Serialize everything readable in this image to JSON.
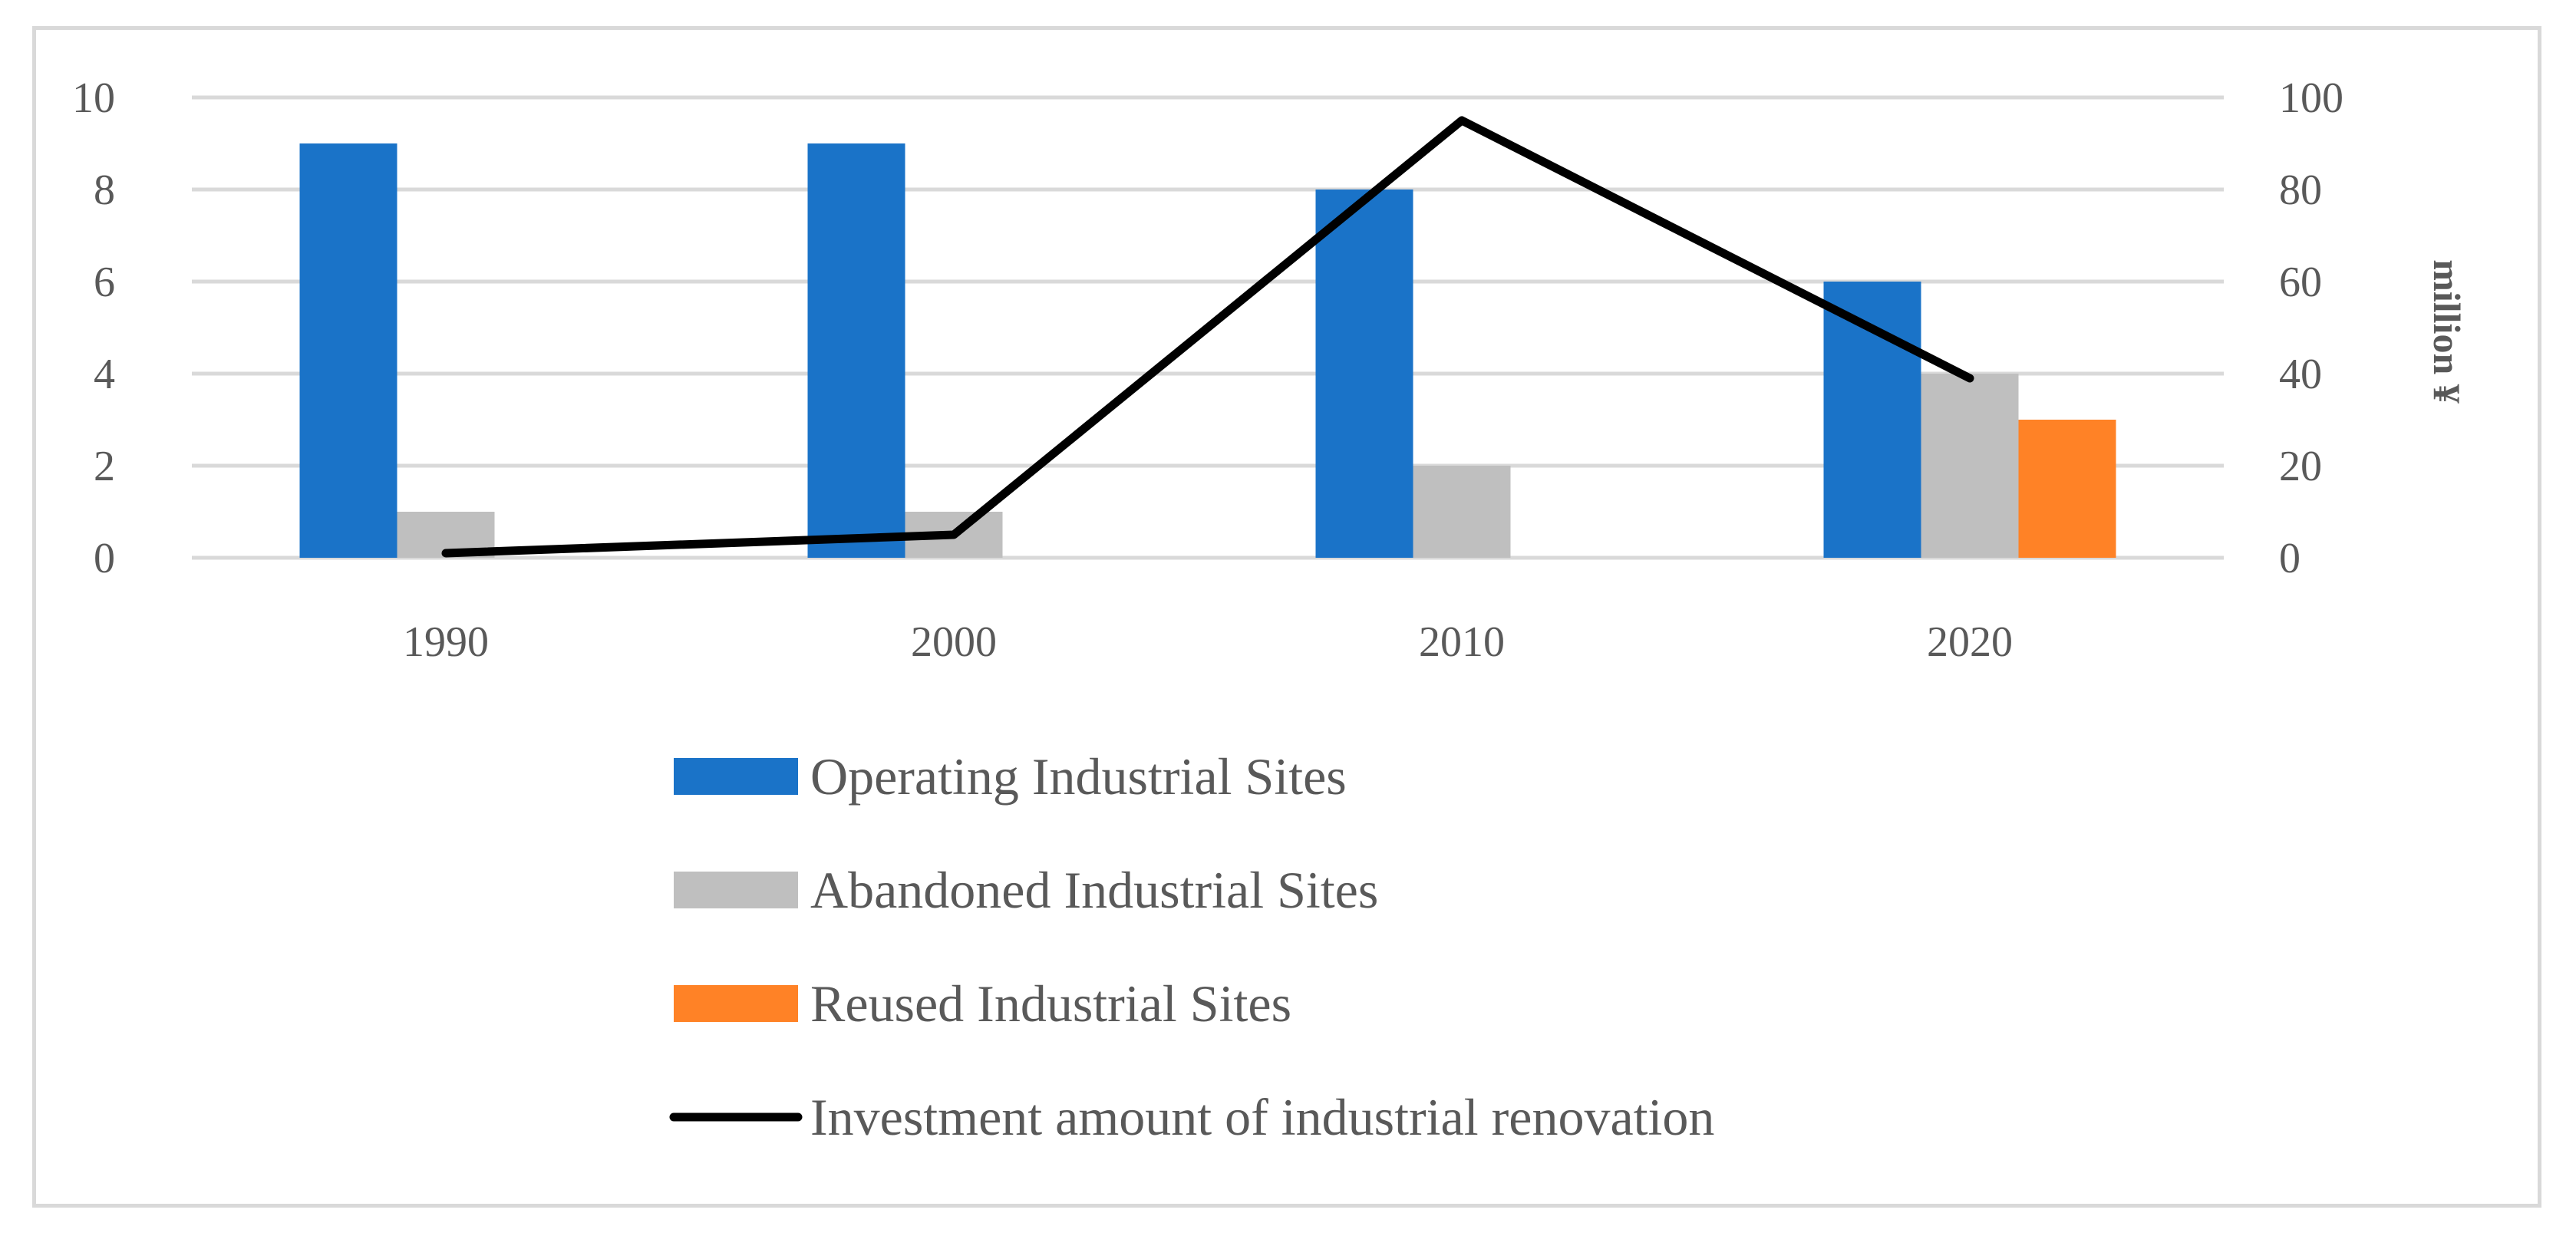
{
  "chart_data": {
    "type": "bar",
    "title": "",
    "xlabel": "",
    "ylabel": "",
    "y2label": "million ¥",
    "categories": [
      "1990",
      "2000",
      "2010",
      "2020"
    ],
    "ylim": [
      0,
      10
    ],
    "y2lim": [
      0,
      100
    ],
    "yticks": [
      "0",
      "2",
      "4",
      "6",
      "8",
      "10"
    ],
    "y2ticks": [
      "0",
      "20",
      "40",
      "60",
      "80",
      "100"
    ],
    "grid": true,
    "legend_position": "bottom",
    "series": [
      {
        "name": "Operating Industrial Sites",
        "kind": "bar",
        "axis": "left",
        "color": "#1a73c8",
        "values": [
          9,
          9,
          8,
          6
        ]
      },
      {
        "name": "Abandoned Industrial Sites",
        "kind": "bar",
        "axis": "left",
        "color": "#bfbfbf",
        "values": [
          1,
          1,
          2,
          4
        ]
      },
      {
        "name": "Reused Industrial Sites",
        "kind": "bar",
        "axis": "left",
        "color": "#ff8226",
        "values": [
          0,
          0,
          0,
          3
        ]
      },
      {
        "name": "Investment amount of industrial renovation",
        "kind": "line",
        "axis": "right",
        "color": "#000000",
        "values": [
          1,
          5,
          95,
          39
        ]
      }
    ]
  }
}
